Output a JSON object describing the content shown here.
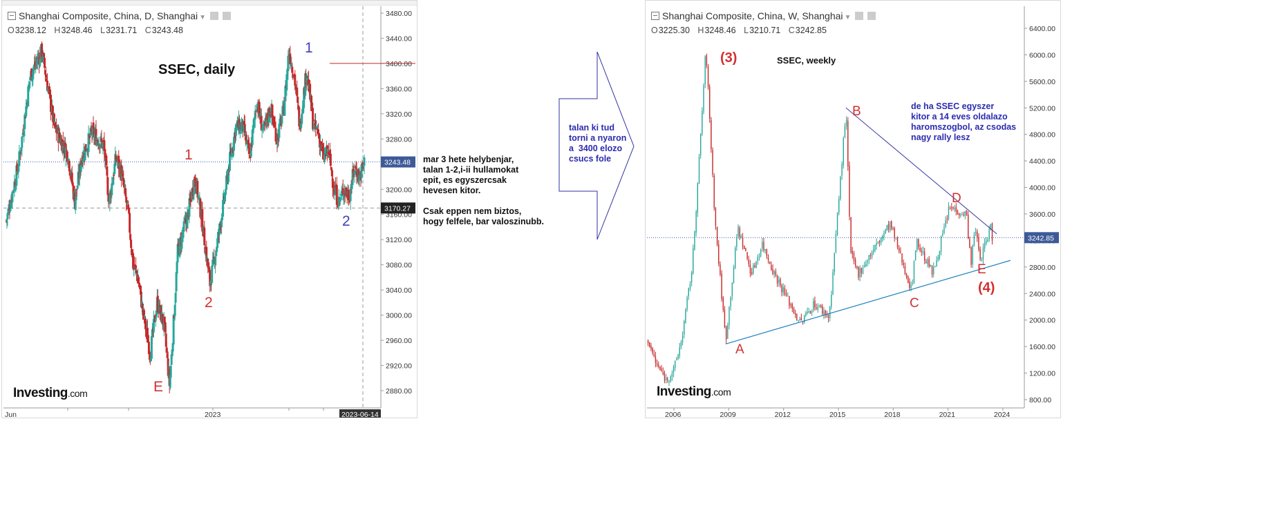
{
  "left_chart": {
    "header": {
      "title": "Shanghai Composite, China, D, Shanghai"
    },
    "ohlc": {
      "o_label": "O",
      "o": "3238.12",
      "h_label": "H",
      "h": "3248.46",
      "l_label": "L",
      "l": "3231.71",
      "c_label": "C",
      "c": "3243.48"
    },
    "annotation_title": "SSEC, daily",
    "wave_labels": {
      "top_1": "1",
      "mid_1": "1",
      "low_2": "2",
      "right_2": "2",
      "E": "E"
    },
    "current_price_tag": "3243.48",
    "level_tag": "3170.27",
    "date_tag": "2023-06-14",
    "logo": {
      "brand": "Investing",
      "suffix": ".com"
    }
  },
  "right_chart": {
    "header": {
      "title": "Shanghai Composite, China, W, Shanghai"
    },
    "ohlc": {
      "o_label": "O",
      "o": "3225.30",
      "h_label": "H",
      "h": "3248.46",
      "l_label": "L",
      "l": "3210.71",
      "c_label": "C",
      "c": "3242.85"
    },
    "annotation_title": "SSEC, weekly",
    "labels": {
      "wave3": "(3)",
      "wave4": "(4)",
      "A": "A",
      "B": "B",
      "C": "C",
      "D": "D",
      "E": "E"
    },
    "current_price_tag": "3242.85",
    "note": "de ha SSEC egyszer\nkitor a 14 eves oldalazo\nharomszogbol, az csodas\nnagy rally lesz",
    "logo": {
      "brand": "Investing",
      "suffix": ".com"
    }
  },
  "middle_note": "mar 3 hete helybenjar,\ntalan 1-2,i-ii hullamokat\nepit, es egyszercsak\nhevesen kitor.\n\nCsak eppen nem biztos,\nhogy felfele, bar valoszinubb.",
  "arrow_note": "talan ki tud\ntorni a nyaron\na  3400 elozo\ncsucs fole",
  "colors": {
    "up": "#26a69a",
    "down": "#c62828",
    "label_red": "#d32f2f",
    "label_blue": "#3f3fbf",
    "trend": "#1a7fc1",
    "price_line": "#3355aa"
  },
  "chart_data": [
    {
      "type": "candlestick",
      "title": "Shanghai Composite, China, D, Shanghai",
      "timeframe": "daily",
      "x_ticks": [
        "Jun",
        "2023"
      ],
      "last_date": "2023-06-14",
      "y_ticks": [
        2880,
        2920,
        2960,
        3000,
        3040,
        3080,
        3120,
        3160,
        3200,
        3240,
        3280,
        3320,
        3360,
        3400,
        3440,
        3480
      ],
      "ylim": [
        2840,
        3490
      ],
      "last_close": 3243.48,
      "horizontal_levels": [
        3243.48,
        3170.27
      ],
      "resistance_line": 3400,
      "path_anchors": {
        "x_unit": "trading-day index (0 = first candle shown)",
        "x": [
          0,
          18,
          35,
          52,
          70,
          90,
          100,
          110,
          125,
          142,
          150,
          160,
          167,
          178,
          185,
          192,
          200,
          210,
          220,
          230,
          238,
          242,
          250,
          265,
          275,
          285,
          297,
          310,
          320,
          325,
          335,
          345,
          355,
          365,
          375,
          385,
          395,
          405,
          412,
          420,
          428,
          438,
          448,
          455,
          462,
          470,
          478,
          485,
          492,
          500,
          508,
          515,
          522
        ],
        "close": [
          3150,
          3240,
          3380,
          3420,
          3300,
          3255,
          3180,
          3250,
          3290,
          3270,
          3180,
          3250,
          3230,
          3160,
          3080,
          3060,
          3000,
          2940,
          3020,
          2985,
          2890,
          2950,
          3100,
          3160,
          3220,
          3155,
          3050,
          3130,
          3200,
          3240,
          3300,
          3300,
          3250,
          3340,
          3290,
          3330,
          3280,
          3330,
          3420,
          3380,
          3300,
          3390,
          3300,
          3290,
          3250,
          3260,
          3200,
          3180,
          3200,
          3190,
          3235,
          3220,
          3243
        ]
      }
    },
    {
      "type": "candlestick",
      "title": "Shanghai Composite, China, W, Shanghai",
      "timeframe": "weekly",
      "x_ticks": [
        "2006",
        "2009",
        "2012",
        "2015",
        "2018",
        "2021",
        "2024"
      ],
      "y_ticks": [
        800,
        1200,
        1600,
        2000,
        2400,
        2800,
        3200,
        3600,
        4000,
        4400,
        4800,
        5200,
        5600,
        6000,
        6400
      ],
      "ylim": [
        650,
        6600
      ],
      "last_close": 3242.85,
      "path": [
        {
          "date": "2004-08",
          "close": 1700
        },
        {
          "date": "2005-01",
          "close": 1350
        },
        {
          "date": "2005-08",
          "close": 1100
        },
        {
          "date": "2006-01",
          "close": 1250
        },
        {
          "date": "2006-06",
          "close": 1700
        },
        {
          "date": "2007-01",
          "close": 2800
        },
        {
          "date": "2007-05",
          "close": 4200
        },
        {
          "date": "2007-10",
          "close": 6100
        },
        {
          "date": "2008-04",
          "close": 3500
        },
        {
          "date": "2008-11",
          "close": 1700
        },
        {
          "date": "2009-07",
          "close": 3400
        },
        {
          "date": "2010-04",
          "close": 2700
        },
        {
          "date": "2010-11",
          "close": 3150
        },
        {
          "date": "2011-07",
          "close": 2700
        },
        {
          "date": "2012-12",
          "close": 1950
        },
        {
          "date": "2013-09",
          "close": 2250
        },
        {
          "date": "2014-07",
          "close": 2050
        },
        {
          "date": "2015-06",
          "close": 5170
        },
        {
          "date": "2015-09",
          "close": 3000
        },
        {
          "date": "2016-02",
          "close": 2700
        },
        {
          "date": "2017-11",
          "close": 3450
        },
        {
          "date": "2019-01",
          "close": 2450
        },
        {
          "date": "2019-04",
          "close": 3200
        },
        {
          "date": "2020-03",
          "close": 2700
        },
        {
          "date": "2021-02",
          "close": 3700
        },
        {
          "date": "2022-01",
          "close": 3600
        },
        {
          "date": "2022-04",
          "close": 2850
        },
        {
          "date": "2022-07",
          "close": 3400
        },
        {
          "date": "2022-10",
          "close": 2900
        },
        {
          "date": "2023-05",
          "close": 3400
        },
        {
          "date": "2023-06",
          "close": 3243
        }
      ],
      "trendlines": [
        {
          "name": "upper",
          "from": {
            "date": "2015-06",
            "value": 5200
          },
          "to": {
            "date": "2023-09",
            "value": 3300
          }
        },
        {
          "name": "lower",
          "from": {
            "date": "2008-11",
            "value": 1640
          },
          "to": {
            "date": "2024-06",
            "value": 2900
          }
        }
      ],
      "points": [
        {
          "label": "(3)",
          "date": "2007-10",
          "value": 6100
        },
        {
          "label": "A",
          "date": "2008-11",
          "value": 1640
        },
        {
          "label": "B",
          "date": "2015-06",
          "value": 5170
        },
        {
          "label": "C",
          "date": "2019-01",
          "value": 2450
        },
        {
          "label": "D",
          "date": "2021-02",
          "value": 3730
        },
        {
          "label": "E",
          "date": "2022-10",
          "value": 2870
        },
        {
          "label": "(4)",
          "date": "2022-10",
          "value": 2870
        }
      ]
    }
  ]
}
